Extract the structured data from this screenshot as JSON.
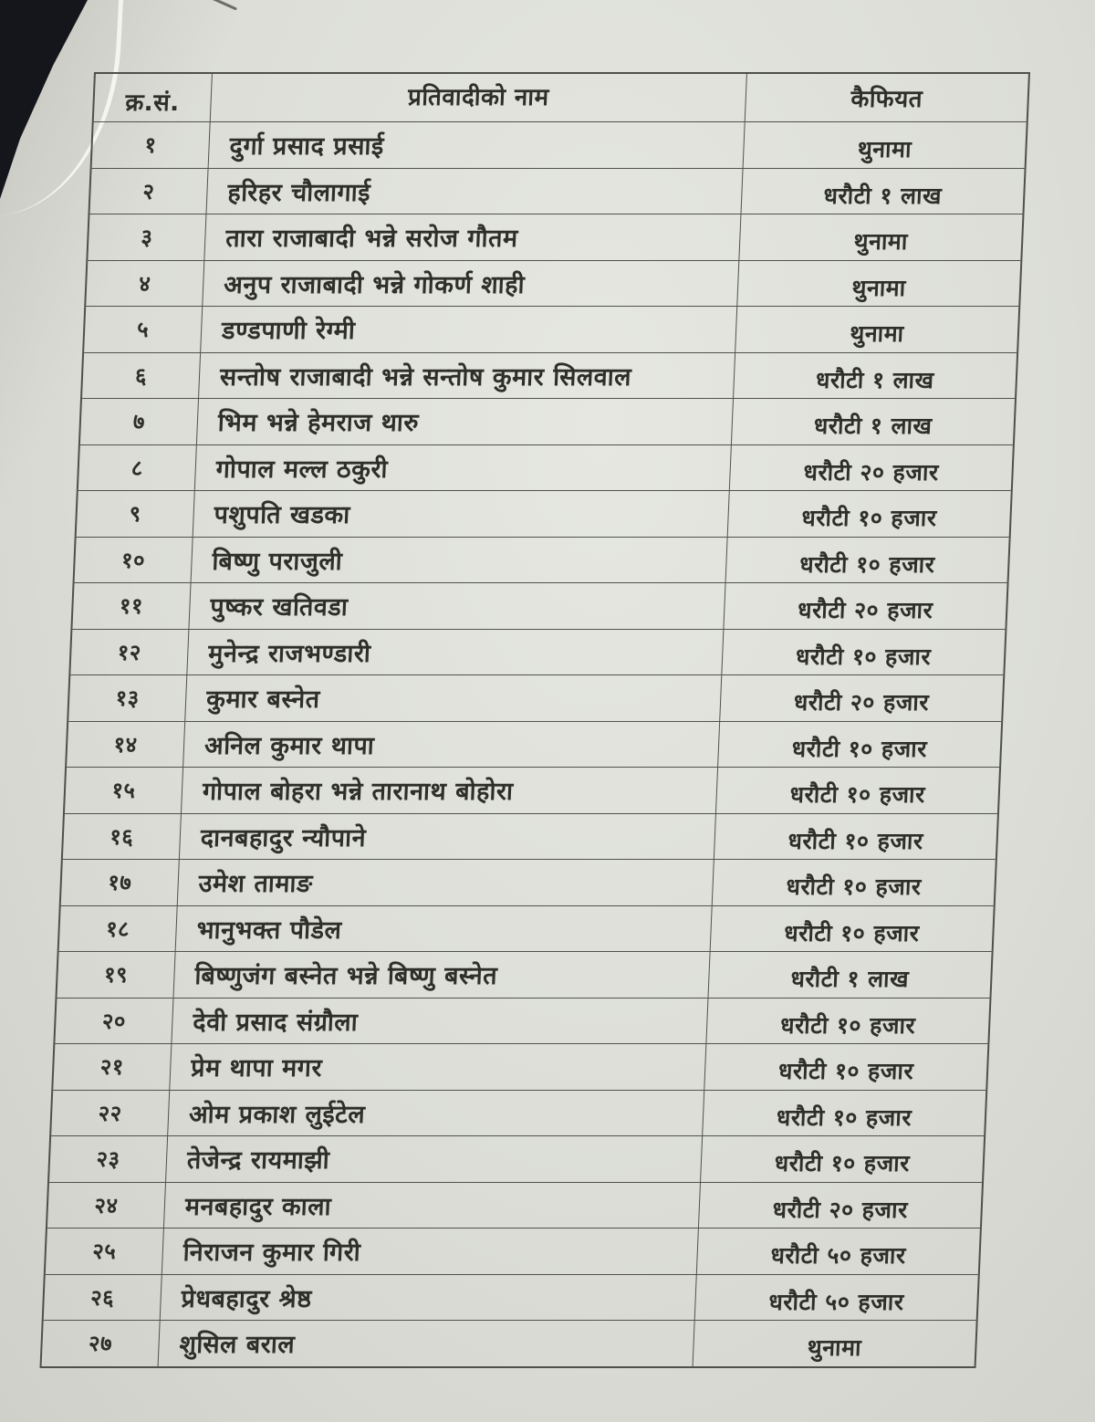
{
  "colors": {
    "background": "#14161b",
    "paper": "#dcddd7",
    "ink": "#2e2e2a",
    "table_line": "#52524c"
  },
  "table": {
    "headers": {
      "serial": "क्र.सं.",
      "name": "प्रतिवादीको नाम",
      "remark": "कैफियत"
    },
    "rows": [
      {
        "sn": "१",
        "name": "दुर्गा प्रसाद प्रसाई",
        "remark": "थुनामा"
      },
      {
        "sn": "२",
        "name": "हरिहर चौलागाई",
        "remark": "धरौटी १ लाख"
      },
      {
        "sn": "३",
        "name": "तारा राजाबादी भन्ने सरोज गौतम",
        "remark": "थुनामा"
      },
      {
        "sn": "४",
        "name": "अनुप राजाबादी भन्ने गोकर्ण शाही",
        "remark": "थुनामा"
      },
      {
        "sn": "५",
        "name": "डण्डपाणी रेग्मी",
        "remark": "थुनामा"
      },
      {
        "sn": "६",
        "name": "सन्तोष राजाबादी भन्ने सन्तोष कुमार सिलवाल",
        "remark": "धरौटी १ लाख"
      },
      {
        "sn": "७",
        "name": "भिम भन्ने हेमराज थारु",
        "remark": "धरौटी १ लाख"
      },
      {
        "sn": "८",
        "name": "गोपाल मल्ल ठकुरी",
        "remark": "धरौटी २० हजार"
      },
      {
        "sn": "९",
        "name": "पशुपति खडका",
        "remark": "धरौटी १० हजार"
      },
      {
        "sn": "१०",
        "name": "बिष्णु पराजुली",
        "remark": "धरौटी १० हजार"
      },
      {
        "sn": "११",
        "name": "पुष्कर खतिवडा",
        "remark": "धरौटी २० हजार"
      },
      {
        "sn": "१२",
        "name": "मुनेन्द्र राजभण्डारी",
        "remark": "धरौटी १० हजार"
      },
      {
        "sn": "१३",
        "name": "कुमार बस्नेत",
        "remark": "धरौटी २० हजार"
      },
      {
        "sn": "१४",
        "name": "अनिल कुमार थापा",
        "remark": "धरौटी १० हजार"
      },
      {
        "sn": "१५",
        "name": "गोपाल बोहरा भन्ने तारानाथ बोहोरा",
        "remark": "धरौटी १० हजार"
      },
      {
        "sn": "१६",
        "name": "दानबहादुर न्यौपाने",
        "remark": "धरौटी १० हजार"
      },
      {
        "sn": "१७",
        "name": "उमेश तामाङ",
        "remark": "धरौटी १० हजार"
      },
      {
        "sn": "१८",
        "name": "भानुभक्त पौडेल",
        "remark": "धरौटी १० हजार"
      },
      {
        "sn": "१९",
        "name": "बिष्णुजंग बस्नेत भन्ने बिष्णु बस्नेत",
        "remark": "धरौटी १ लाख"
      },
      {
        "sn": "२०",
        "name": "देवी प्रसाद संग्रौला",
        "remark": "धरौटी १० हजार"
      },
      {
        "sn": "२१",
        "name": "प्रेम थापा मगर",
        "remark": "धरौटी १० हजार"
      },
      {
        "sn": "२२",
        "name": "ओम प्रकाश लुईटेल",
        "remark": "धरौटी १० हजार"
      },
      {
        "sn": "२३",
        "name": "तेजेन्द्र रायमाझी",
        "remark": "धरौटी १० हजार"
      },
      {
        "sn": "२४",
        "name": "मनबहादुर काला",
        "remark": "धरौटी २० हजार"
      },
      {
        "sn": "२५",
        "name": "निराजन कुमार गिरी",
        "remark": "धरौटी ५० हजार"
      },
      {
        "sn": "२६",
        "name": "प्रेधबहादुर श्रेष्ठ",
        "remark": "धरौटी ५० हजार"
      },
      {
        "sn": "२७",
        "name": "शुसिल बराल",
        "remark": "थुनामा"
      }
    ]
  }
}
